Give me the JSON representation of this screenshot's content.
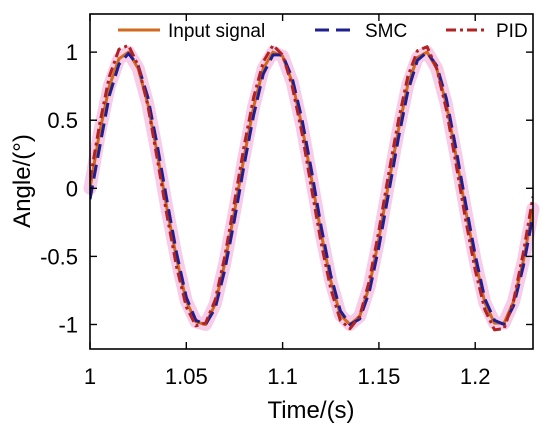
{
  "chart_data": {
    "type": "line",
    "title": "",
    "xlabel": "Time/(s)",
    "ylabel": "Angle/(°)",
    "xlim": [
      1.0,
      1.23
    ],
    "ylim": [
      -1.18,
      1.28
    ],
    "xticks": [
      1,
      1.05,
      1.1,
      1.15,
      1.2
    ],
    "xtick_labels": [
      "1",
      "1.05",
      "1.1",
      "1.15",
      "1.2"
    ],
    "yticks": [
      1,
      0.5,
      0,
      -0.5,
      -1
    ],
    "ytick_labels": [
      "1",
      "0.5",
      "0",
      "-0.5",
      "-1"
    ],
    "grid": false,
    "legend_position": "top",
    "x": [
      1.0,
      1.005,
      1.01,
      1.015,
      1.02,
      1.025,
      1.03,
      1.035,
      1.04,
      1.045,
      1.05,
      1.055,
      1.06,
      1.065,
      1.07,
      1.075,
      1.08,
      1.085,
      1.09,
      1.095,
      1.1,
      1.105,
      1.11,
      1.115,
      1.12,
      1.125,
      1.13,
      1.135,
      1.14,
      1.145,
      1.15,
      1.155,
      1.16,
      1.165,
      1.17,
      1.175,
      1.18,
      1.185,
      1.19,
      1.195,
      1.2,
      1.205,
      1.21,
      1.215,
      1.22,
      1.225,
      1.23
    ],
    "series": [
      {
        "name": "Input signal",
        "color": "#D2691E",
        "style": "solid",
        "values": [
          0.0,
          0.41,
          0.75,
          0.95,
          1.0,
          0.88,
          0.62,
          0.25,
          -0.15,
          -0.52,
          -0.83,
          -0.98,
          -1.0,
          -0.85,
          -0.55,
          -0.17,
          0.23,
          0.6,
          0.88,
          1.0,
          0.97,
          0.78,
          0.46,
          0.07,
          -0.33,
          -0.68,
          -0.93,
          -1.0,
          -0.94,
          -0.72,
          -0.37,
          0.03,
          0.42,
          0.76,
          0.96,
          1.0,
          0.88,
          0.62,
          0.24,
          -0.16,
          -0.53,
          -0.84,
          -0.99,
          -0.99,
          -0.83,
          -0.53,
          -0.15
        ]
      },
      {
        "name": "SMC",
        "color": "#1F1F8F",
        "style": "dashed",
        "values": [
          -0.08,
          0.3,
          0.68,
          0.91,
          0.99,
          0.9,
          0.67,
          0.31,
          -0.09,
          -0.48,
          -0.8,
          -0.97,
          -1.0,
          -0.88,
          -0.6,
          -0.23,
          0.17,
          0.54,
          0.84,
          0.98,
          0.98,
          0.81,
          0.51,
          0.13,
          -0.28,
          -0.64,
          -0.9,
          -1.0,
          -0.96,
          -0.76,
          -0.43,
          -0.04,
          0.36,
          0.71,
          0.94,
          1.0,
          0.9,
          0.66,
          0.29,
          -0.11,
          -0.49,
          -0.81,
          -0.97,
          -1.0,
          -0.86,
          -0.57,
          -0.2
        ]
      },
      {
        "name": "PID",
        "color": "#B22222",
        "style": "dashdot",
        "values": [
          0.06,
          0.47,
          0.82,
          1.02,
          1.05,
          0.9,
          0.61,
          0.21,
          -0.2,
          -0.58,
          -0.87,
          -1.01,
          -0.99,
          -0.82,
          -0.5,
          -0.1,
          0.31,
          0.67,
          0.93,
          1.05,
          0.98,
          0.75,
          0.41,
          0.0,
          -0.4,
          -0.74,
          -0.97,
          -1.03,
          -0.94,
          -0.68,
          -0.31,
          0.1,
          0.49,
          0.82,
          1.01,
          1.04,
          0.88,
          0.58,
          0.18,
          -0.23,
          -0.6,
          -0.89,
          -1.04,
          -1.03,
          -0.82,
          -0.47,
          -0.06
        ]
      }
    ],
    "envelope_color": "#F4B6E0"
  }
}
